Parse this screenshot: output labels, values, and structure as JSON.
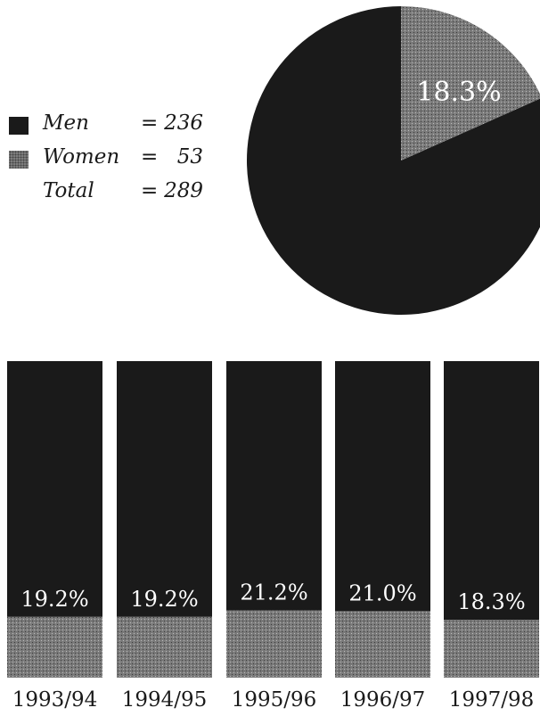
{
  "colors": {
    "men": "#1a1a1a",
    "women": "#7a7a7a",
    "label": "#ffffff",
    "axis_text": "#1a1a1a"
  },
  "legend": {
    "rows": [
      {
        "label": "Men",
        "eq": "=",
        "value": "236"
      },
      {
        "label": "Women",
        "eq": "=",
        "value": "53"
      },
      {
        "label": "Total",
        "eq": "=",
        "value": "289"
      }
    ]
  },
  "chart_data": [
    {
      "type": "pie",
      "slices": [
        {
          "name": "Men",
          "value": 236
        },
        {
          "name": "Women",
          "value": 53
        }
      ],
      "label": "18.3%"
    },
    {
      "type": "bar",
      "stacked_percent": true,
      "categories": [
        "1993/94",
        "1994/95",
        "1995/96",
        "1996/97",
        "1997/98"
      ],
      "values": [
        19.2,
        19.2,
        21.2,
        21.0,
        18.3
      ],
      "labels": [
        "19.2%",
        "19.2%",
        "21.2%",
        "21.0%",
        "18.3%"
      ],
      "ylim": [
        0,
        100
      ]
    }
  ]
}
